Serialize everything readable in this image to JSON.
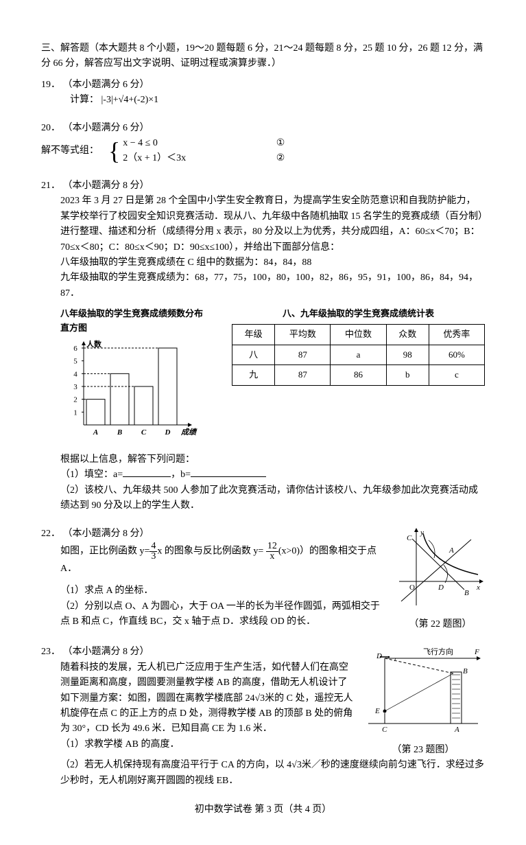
{
  "section": {
    "heading": "三、解答题（本大题共 8 个小题，19～20 题每题 6 分，21～24 题每题 8 分，25 题 10 分，26 题 12 分，满分 66 分，解答应写出文字说明、证明过程或演算步骤．）"
  },
  "p19": {
    "num": "19．",
    "pts": "（本小题满分 6 分）",
    "line1": "计算：",
    "expr": "|-3|+√4+(-2)×1"
  },
  "p20": {
    "num": "20．",
    "pts": "（本小题满分 6 分）",
    "stem": "解不等式组：",
    "eq1": "x − 4 ≤ 0",
    "eq1_label": "①",
    "eq2": "2（x + 1）＜3x",
    "eq2_label": "②"
  },
  "p21": {
    "num": "21．",
    "pts": "（本小题满分 8 分）",
    "para1": "2023 年 3 月 27 日是第 28 个全国中小学生安全教育日，为提高学生安全防范意识和自我防护能力，某学校举行了校园安全知识竞赛活动．现从八、九年级中各随机抽取 15 名学生的竞赛成绩（百分制）进行整理、描述和分析（成绩得分用 x 表示，80 分及以上为优秀，共分成四组，A：60≤x＜70；B：70≤x＜80；C：80≤x＜90；D：90≤x≤100），并给出下面部分信息：",
    "para2": "八年级抽取的学生竞赛成绩在 C 组中的数据为：84，84，88",
    "para3": "九年级抽取的学生竞赛成绩为：68，77，75，100，80，100，82，86，95，91，100，86，84，94，87．",
    "chart": {
      "title": "八年级抽取的学生竞赛成绩频数分布直方图",
      "y_label": "人数",
      "x_label": "成绩",
      "y_ticks": [
        "1",
        "2",
        "3",
        "4",
        "5",
        "6"
      ],
      "x_ticks": [
        "A",
        "B",
        "C",
        "D"
      ],
      "values": [
        2,
        4,
        3,
        6
      ],
      "bar_fill": "#ffffff",
      "bar_stroke": "#000000",
      "axis_color": "#000000",
      "bg": "#ffffff"
    },
    "table": {
      "title": "八、九年级抽取的学生竞赛成绩统计表",
      "headers": [
        "年级",
        "平均数",
        "中位数",
        "众数",
        "优秀率"
      ],
      "rows": [
        [
          "八",
          "87",
          "a",
          "98",
          "60%"
        ],
        [
          "九",
          "87",
          "86",
          "b",
          "c"
        ]
      ]
    },
    "after": "根据以上信息，解答下列问题：",
    "q1a": "（1）填空：a=",
    "q1b": "，b=",
    "q2": "（2）该校八、九年级共 500 人参加了此次竞赛活动，请你估计该校八、九年级参加此次竞赛活动成绩达到 90 分及以上的学生人数．"
  },
  "p22": {
    "num": "22．",
    "pts": "（本小题满分 8 分）",
    "stem_a": "如图，正比例函数 y=",
    "frac1_n": "4",
    "frac1_d": "3",
    "stem_b": "x 的图象与反比例函数 y= ",
    "frac2_n": "12",
    "frac2_d": "x",
    "stem_c": "(x>0)）的图象相交于点 A．",
    "q1": "（1）求点 A 的坐标．",
    "q2": "（2）分别以点 O、A 为圆心，大于 OA 一半的长为半径作圆弧，两弧相交于点 B 和点 C，作直线 BC，交 x 轴于点 D．求线段 OD 的长．",
    "caption": "（第 22 题图）",
    "fig": {
      "labels": {
        "y": "y",
        "x": "x",
        "O": "O",
        "A": "A",
        "B": "B",
        "C": "C",
        "D": "D"
      }
    }
  },
  "p23": {
    "num": "23．",
    "pts": "（本小题满分 8 分）",
    "para": "随着科技的发展，无人机已广泛应用于生产生活，如代替人们在高空测量距离和高度，圆圆要测量教学楼 AB 的高度，借助无人机设计了如下测量方案：如图，圆圆在离教学楼底部 24√3米的 C 处，遥控无人机旋停在点 C 的正上方的点 D 处，测得教学楼 AB 的顶部 B 处的俯角为 30°，CD 长为 49.6 米．已知目高 CE 为 1.6 米．",
    "q1": "（1）求教学楼 AB 的高度．",
    "caption": "（第 23 题图）",
    "q2": "（2）若无人机保持现有高度沿平行于 CA 的方向，以 4√3米／秒的速度继续向前匀速飞行．求经过多少秒时，无人机刚好离开圆圆的视线 EB．",
    "fig": {
      "labels": {
        "D": "D",
        "F": "F",
        "B": "B",
        "E": "E",
        "C": "C",
        "A": "A",
        "dir": "飞行方向"
      }
    }
  },
  "footer": "初中数学试卷  第 3 页（共 4 页）"
}
